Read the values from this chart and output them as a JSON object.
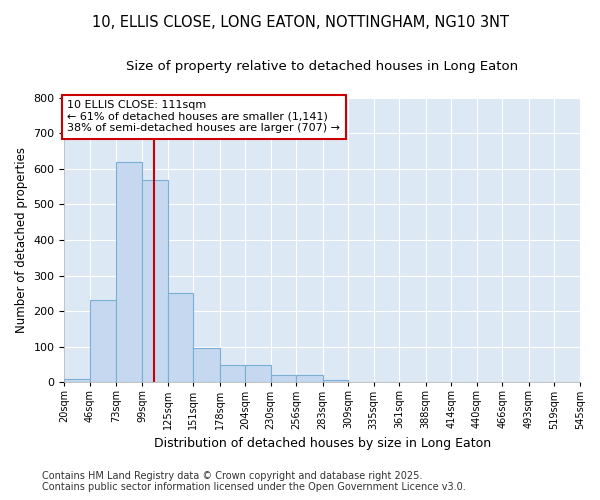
{
  "title1": "10, ELLIS CLOSE, LONG EATON, NOTTINGHAM, NG10 3NT",
  "title2": "Size of property relative to detached houses in Long Eaton",
  "xlabel": "Distribution of detached houses by size in Long Eaton",
  "ylabel": "Number of detached properties",
  "footer1": "Contains HM Land Registry data © Crown copyright and database right 2025.",
  "footer2": "Contains public sector information licensed under the Open Government Licence v3.0.",
  "bar_edges": [
    20,
    46,
    73,
    99,
    125,
    151,
    178,
    204,
    230,
    256,
    283,
    309,
    335,
    361,
    388,
    414,
    440,
    466,
    493,
    519,
    545
  ],
  "bar_heights": [
    10,
    232,
    620,
    570,
    252,
    97,
    48,
    48,
    22,
    22,
    8,
    2,
    0,
    0,
    0,
    0,
    0,
    0,
    0,
    0
  ],
  "bar_color": "#c5d8f0",
  "bar_edgecolor": "#7aafd4",
  "vline_x": 111,
  "vline_color": "#cc0000",
  "annotation_title": "10 ELLIS CLOSE: 111sqm",
  "annotation_line1": "← 61% of detached houses are smaller (1,141)",
  "annotation_line2": "38% of semi-detached houses are larger (707) →",
  "annotation_box_color": "#cc0000",
  "annotation_text_color": "#000000",
  "annotation_bg_color": "#ffffff",
  "ylim": [
    0,
    800
  ],
  "yticks": [
    0,
    100,
    200,
    300,
    400,
    500,
    600,
    700,
    800
  ],
  "bg_color": "#ffffff",
  "plot_bg_color": "#dde8f5",
  "grid_color": "#ffffff",
  "title_fontsize": 10.5,
  "subtitle_fontsize": 9.5,
  "footer_fontsize": 7
}
